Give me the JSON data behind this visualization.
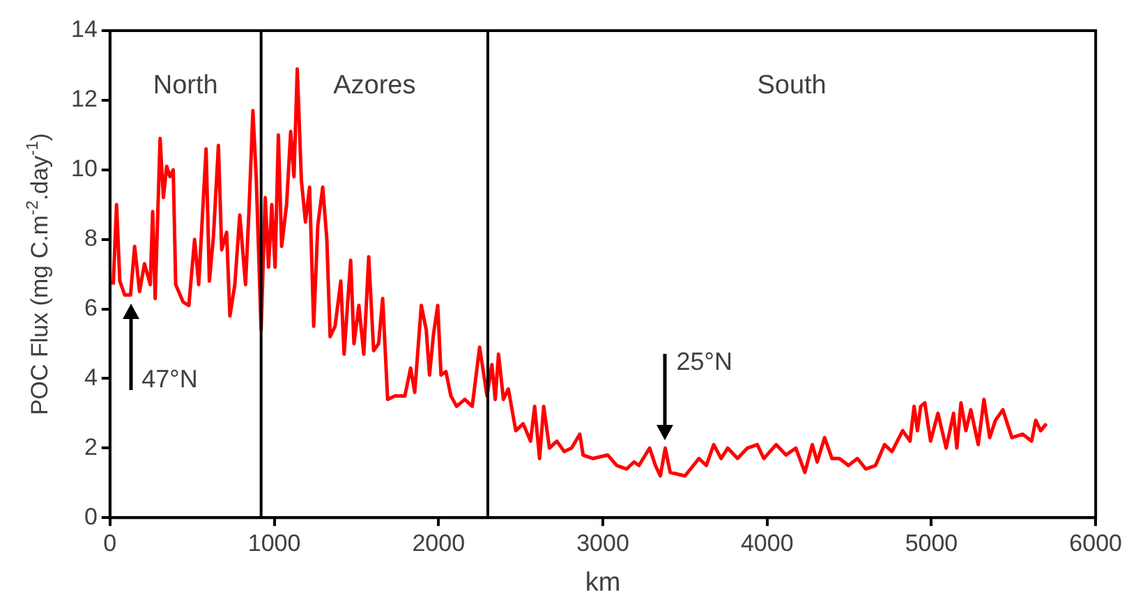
{
  "chart_data": {
    "type": "line",
    "xlabel": "km",
    "ylabel": "POC Flux (mg C.m$^{-2}$.day$^{-1}$)",
    "xlim": [
      0,
      6000
    ],
    "xticks": [
      0,
      1000,
      2000,
      3000,
      4000,
      5000,
      6000
    ],
    "ylim": [
      0,
      14
    ],
    "yticks": [
      0,
      2,
      4,
      6,
      8,
      10,
      12,
      14
    ],
    "grid": false,
    "legend": false,
    "marker": "none",
    "line_style": "solid",
    "ref_lines": [
      {
        "axis": "x",
        "value": 920
      },
      {
        "axis": "x",
        "value": 2300
      }
    ],
    "annotations": [
      "North",
      "Azores",
      "South",
      {
        "text": "47°N",
        "x": 125,
        "y": 6.4
      },
      {
        "text": "25°N",
        "x": 3380,
        "y": 2.0
      }
    ],
    "series": [
      {
        "color": "#ff0000",
        "x": [
          20,
          40,
          60,
          90,
          125,
          150,
          180,
          210,
          245,
          260,
          275,
          305,
          325,
          345,
          365,
          385,
          400,
          445,
          480,
          515,
          540,
          585,
          605,
          630,
          660,
          680,
          710,
          730,
          760,
          790,
          825,
          845,
          870,
          890,
          920,
          945,
          965,
          985,
          1005,
          1025,
          1045,
          1075,
          1100,
          1120,
          1140,
          1165,
          1190,
          1215,
          1240,
          1265,
          1295,
          1320,
          1340,
          1370,
          1405,
          1425,
          1465,
          1485,
          1515,
          1545,
          1575,
          1605,
          1635,
          1660,
          1690,
          1735,
          1795,
          1830,
          1855,
          1895,
          1925,
          1945,
          1970,
          1995,
          2015,
          2045,
          2075,
          2110,
          2160,
          2205,
          2250,
          2295,
          2325,
          2345,
          2365,
          2395,
          2425,
          2470,
          2515,
          2560,
          2585,
          2615,
          2640,
          2675,
          2720,
          2765,
          2810,
          2860,
          2880,
          2940,
          3030,
          3085,
          3145,
          3190,
          3220,
          3285,
          3320,
          3350,
          3380,
          3410,
          3500,
          3585,
          3630,
          3675,
          3720,
          3760,
          3820,
          3880,
          3940,
          3980,
          4055,
          4115,
          4175,
          4230,
          4275,
          4305,
          4350,
          4395,
          4440,
          4495,
          4550,
          4600,
          4660,
          4715,
          4760,
          4825,
          4870,
          4895,
          4915,
          4935,
          4960,
          4995,
          5040,
          5090,
          5135,
          5155,
          5180,
          5210,
          5240,
          5285,
          5320,
          5355,
          5390,
          5435,
          5490,
          5555,
          5610,
          5635,
          5665,
          5700
        ],
        "values": [
          6.7,
          9.0,
          6.8,
          6.4,
          6.4,
          7.8,
          6.5,
          7.3,
          6.7,
          8.8,
          6.3,
          10.9,
          9.2,
          10.1,
          9.8,
          10.0,
          6.7,
          6.2,
          6.1,
          8.0,
          6.7,
          10.6,
          6.8,
          8.1,
          10.7,
          7.7,
          8.2,
          5.8,
          6.7,
          8.7,
          6.7,
          8.7,
          11.7,
          9.8,
          5.4,
          9.2,
          7.2,
          9.0,
          7.2,
          11.0,
          7.8,
          9.0,
          11.1,
          9.8,
          12.9,
          9.7,
          8.5,
          9.5,
          5.5,
          8.4,
          9.5,
          8.0,
          5.2,
          5.5,
          6.8,
          4.7,
          7.4,
          5.0,
          6.1,
          4.7,
          7.5,
          4.8,
          5.0,
          6.3,
          3.4,
          3.5,
          3.5,
          4.3,
          3.6,
          6.1,
          5.4,
          4.1,
          5.3,
          6.1,
          4.1,
          4.2,
          3.5,
          3.2,
          3.4,
          3.2,
          4.9,
          3.5,
          4.4,
          3.4,
          4.7,
          3.4,
          3.7,
          2.5,
          2.7,
          2.2,
          3.2,
          1.7,
          3.2,
          2.0,
          2.2,
          1.9,
          2.0,
          2.4,
          1.8,
          1.7,
          1.8,
          1.5,
          1.4,
          1.6,
          1.5,
          2.0,
          1.5,
          1.2,
          2.0,
          1.3,
          1.2,
          1.7,
          1.5,
          2.1,
          1.7,
          2.0,
          1.7,
          2.0,
          2.1,
          1.7,
          2.1,
          1.8,
          2.0,
          1.3,
          2.1,
          1.6,
          2.3,
          1.7,
          1.7,
          1.5,
          1.7,
          1.4,
          1.5,
          2.1,
          1.9,
          2.5,
          2.2,
          3.2,
          2.5,
          3.2,
          3.3,
          2.2,
          3.0,
          2.0,
          3.0,
          2.0,
          3.3,
          2.5,
          3.1,
          2.1,
          3.4,
          2.3,
          2.8,
          3.1,
          2.3,
          2.4,
          2.2,
          2.8,
          2.5,
          2.7
        ]
      }
    ]
  }
}
